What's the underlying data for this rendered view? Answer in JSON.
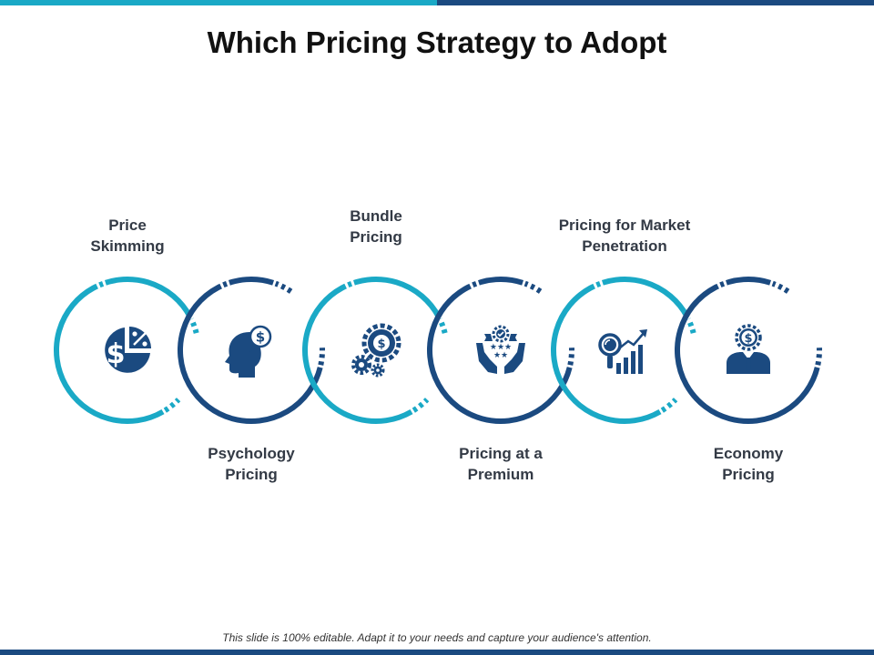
{
  "header": {
    "title": "Which Pricing Strategy to Adopt"
  },
  "colors": {
    "teal": "#1aa9c6",
    "navy": "#1b4a80",
    "top_bar_left": "#1aa9c6",
    "top_bar_right": "#1b4a80",
    "bottom_bar": "#1b4a80"
  },
  "steps": [
    {
      "label": "Price\nSkimming",
      "icon": "pie-chart-dollar-icon",
      "color": "teal",
      "label_position": "top"
    },
    {
      "label": "Psychology\nPricing",
      "icon": "head-dollar-icon",
      "color": "navy",
      "label_position": "bottom"
    },
    {
      "label": "Bundle\nPricing",
      "icon": "gears-dollar-icon",
      "color": "teal",
      "label_position": "top"
    },
    {
      "label": "Pricing at a\nPremium",
      "icon": "hands-badge-stars-icon",
      "color": "navy",
      "label_position": "bottom"
    },
    {
      "label": "Pricing for Market\nPenetration",
      "icon": "magnifier-growth-chart-icon",
      "color": "teal",
      "label_position": "top"
    },
    {
      "label": "Economy\nPricing",
      "icon": "businessman-dollar-icon",
      "color": "navy",
      "label_position": "bottom"
    }
  ],
  "footer": {
    "note": "This slide is 100% editable. Adapt it to your needs and capture your audience's attention."
  }
}
